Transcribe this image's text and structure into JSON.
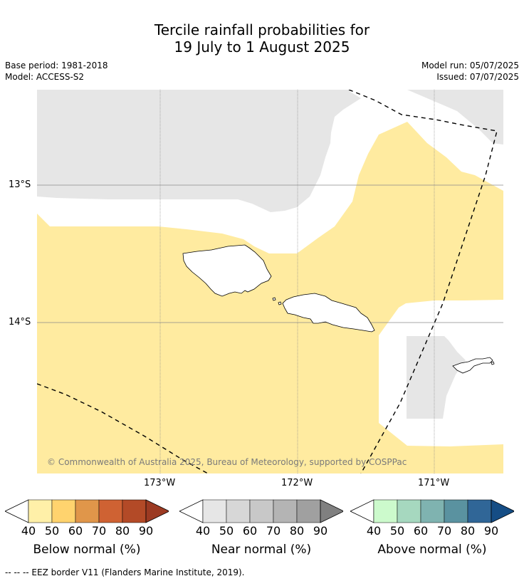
{
  "header": {
    "title_line1": "Tercile rainfall probabilities for",
    "title_line2": "19 July to 1 August 2025",
    "base_period": "Base period: 1981-2018",
    "model": "Model: ACCESS-S2",
    "model_run": "Model run: 05/07/2025",
    "issued": "Issued: 07/07/2025"
  },
  "map": {
    "lat_labels": [
      "13°S",
      "14°S"
    ],
    "lon_labels": [
      "173°W",
      "172°W",
      "171°W"
    ],
    "copyright": "© Commonwealth of Australia 2025, Bureau of Meteorology, supported by COSPPac",
    "colors": {
      "below_normal_40": "#fff0a8",
      "near_normal_40": "#e6e6e6",
      "land_outline": "#000000",
      "eez_line": "#000000"
    }
  },
  "colorbars": [
    {
      "label": "Below normal (%)",
      "ticks": [
        "40",
        "50",
        "60",
        "70",
        "80",
        "90"
      ],
      "colors": [
        "#fff0a8",
        "#ffd36e",
        "#e0964a",
        "#cf6233",
        "#b34a27",
        "#9c3a22"
      ]
    },
    {
      "label": "Near normal (%)",
      "ticks": [
        "40",
        "50",
        "60",
        "70",
        "80",
        "90"
      ],
      "colors": [
        "#e6e6e6",
        "#d7d7d7",
        "#c8c8c8",
        "#b4b4b4",
        "#a0a0a0",
        "#808080"
      ]
    },
    {
      "label": "Above normal (%)",
      "ticks": [
        "40",
        "50",
        "60",
        "70",
        "80",
        "90"
      ],
      "colors": [
        "#ccfacc",
        "#a6d8bf",
        "#7fb3b0",
        "#5a92a0",
        "#306697",
        "#154d85"
      ]
    }
  ],
  "footer": {
    "eez_note": "--  --  -- EEZ border V11 (Flanders Marine Institute, 2019)."
  }
}
